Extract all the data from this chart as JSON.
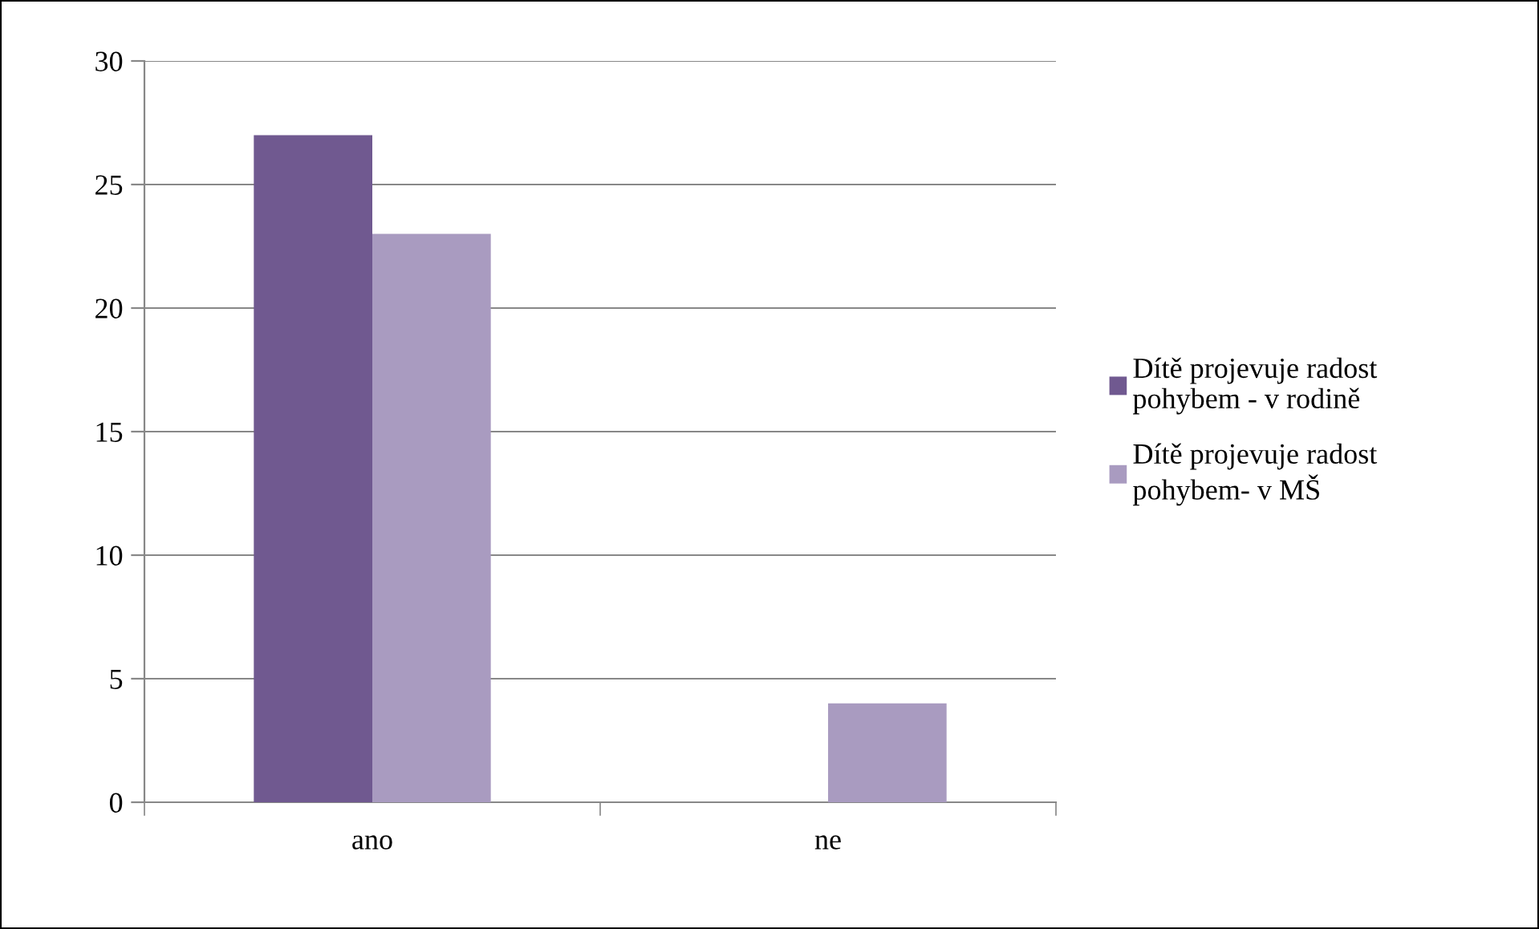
{
  "chart_data": {
    "type": "bar",
    "categories": [
      "ano",
      "ne"
    ],
    "series": [
      {
        "name": "Dítě projevuje radost pohybem - v rodině",
        "color": "#705990",
        "values": [
          27,
          0
        ]
      },
      {
        "name": "Dítě projevuje radost pohybem- v MŠ",
        "color": "#a99bc0",
        "values": [
          23,
          4
        ]
      }
    ],
    "ylim": [
      0,
      30
    ],
    "yticks": [
      0,
      5,
      10,
      15,
      20,
      25,
      30
    ],
    "grid": "y",
    "legend": "right"
  }
}
